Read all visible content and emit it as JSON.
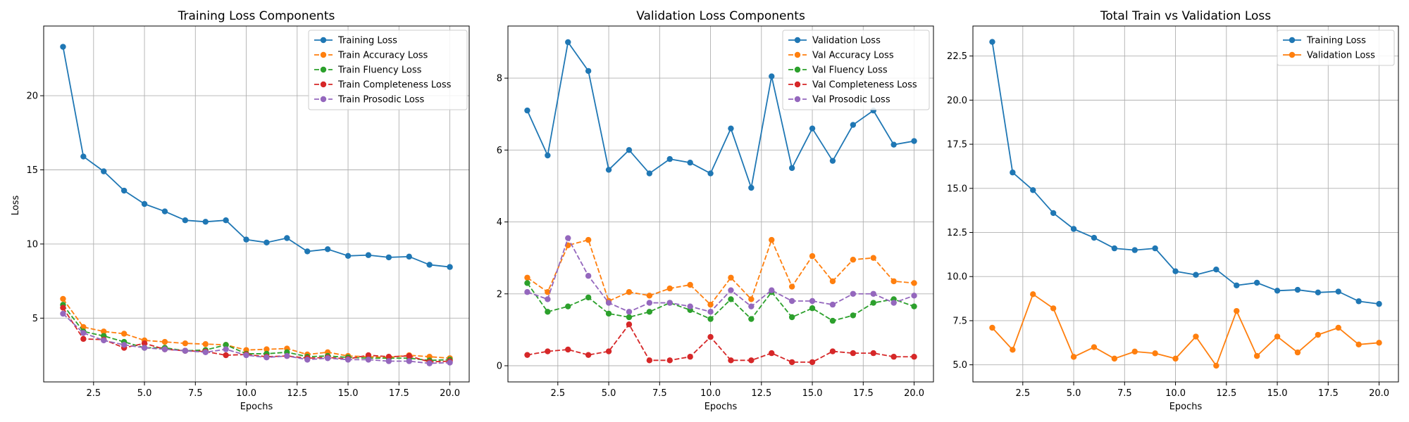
{
  "colors": [
    "#1f77b4",
    "#ff7f0e",
    "#2ca02c",
    "#d62728",
    "#9467bd"
  ],
  "chart_data": [
    {
      "type": "line",
      "title": "Training Loss Components",
      "xlabel": "Epochs",
      "ylabel": "Loss",
      "xlim": [
        0.05,
        20.95
      ],
      "ylim": [
        0.7,
        24.7
      ],
      "xticks": [
        2.5,
        5.0,
        7.5,
        10.0,
        12.5,
        15.0,
        17.5,
        20.0
      ],
      "yticks": [
        5,
        10,
        15,
        20
      ],
      "grid": true,
      "legend": "top-right",
      "x": [
        1,
        2,
        3,
        4,
        5,
        6,
        7,
        8,
        9,
        10,
        11,
        12,
        13,
        14,
        15,
        16,
        17,
        18,
        19,
        20
      ],
      "series": [
        {
          "name": "Training Loss",
          "style": "solid",
          "values": [
            23.3,
            15.9,
            14.9,
            13.6,
            12.7,
            12.2,
            11.6,
            11.5,
            11.6,
            10.3,
            10.1,
            10.4,
            9.5,
            9.65,
            9.2,
            9.25,
            9.1,
            9.15,
            8.6,
            8.45
          ]
        },
        {
          "name": "Train Accuracy Loss",
          "style": "dashed",
          "values": [
            6.3,
            4.4,
            4.1,
            3.95,
            3.5,
            3.4,
            3.3,
            3.25,
            3.2,
            2.85,
            2.9,
            2.95,
            2.55,
            2.7,
            2.45,
            2.4,
            2.35,
            2.5,
            2.4,
            2.3
          ]
        },
        {
          "name": "Train Fluency Loss",
          "style": "dashed",
          "values": [
            5.9,
            4.1,
            3.8,
            3.4,
            3.0,
            3.0,
            2.8,
            2.85,
            3.2,
            2.6,
            2.6,
            2.7,
            2.4,
            2.45,
            2.35,
            2.3,
            2.3,
            2.3,
            2.15,
            2.2
          ]
        },
        {
          "name": "Train Completeness Loss",
          "style": "dashed",
          "values": [
            5.7,
            3.6,
            3.55,
            3.0,
            3.3,
            2.9,
            2.8,
            2.75,
            2.5,
            2.55,
            2.4,
            2.45,
            2.3,
            2.35,
            2.25,
            2.5,
            2.4,
            2.45,
            2.05,
            2.1
          ]
        },
        {
          "name": "Train Prosodic Loss",
          "style": "dashed",
          "values": [
            5.3,
            4.0,
            3.5,
            3.2,
            3.0,
            2.9,
            2.8,
            2.7,
            2.9,
            2.5,
            2.35,
            2.45,
            2.2,
            2.3,
            2.2,
            2.2,
            2.1,
            2.1,
            1.95,
            2.0
          ]
        }
      ]
    },
    {
      "type": "line",
      "title": "Validation Loss Components",
      "xlabel": "Epochs",
      "ylabel": "",
      "xlim": [
        0.05,
        20.95
      ],
      "ylim": [
        -0.45,
        9.45
      ],
      "xticks": [
        2.5,
        5.0,
        7.5,
        10.0,
        12.5,
        15.0,
        17.5,
        20.0
      ],
      "yticks": [
        0,
        2,
        4,
        6,
        8
      ],
      "grid": true,
      "legend": "top-right",
      "x": [
        1,
        2,
        3,
        4,
        5,
        6,
        7,
        8,
        9,
        10,
        11,
        12,
        13,
        14,
        15,
        16,
        17,
        18,
        19,
        20
      ],
      "series": [
        {
          "name": "Validation Loss",
          "style": "solid",
          "values": [
            7.1,
            5.85,
            9.0,
            8.2,
            5.45,
            6.0,
            5.35,
            5.75,
            5.65,
            5.35,
            6.6,
            4.95,
            8.05,
            5.5,
            6.6,
            5.7,
            6.7,
            7.1,
            6.15,
            6.25
          ]
        },
        {
          "name": "Val Accuracy Loss",
          "style": "dashed",
          "values": [
            2.45,
            2.05,
            3.35,
            3.5,
            1.8,
            2.05,
            1.95,
            2.15,
            2.25,
            1.7,
            2.45,
            1.85,
            3.5,
            2.2,
            3.05,
            2.35,
            2.95,
            3.0,
            2.35,
            2.3
          ]
        },
        {
          "name": "Val Fluency Loss",
          "style": "dashed",
          "values": [
            2.3,
            1.5,
            1.65,
            1.9,
            1.45,
            1.35,
            1.5,
            1.75,
            1.55,
            1.3,
            1.85,
            1.3,
            2.05,
            1.35,
            1.6,
            1.25,
            1.4,
            1.75,
            1.85,
            1.65
          ]
        },
        {
          "name": "Val Completeness Loss",
          "style": "dashed",
          "values": [
            0.3,
            0.4,
            0.45,
            0.3,
            0.4,
            1.15,
            0.15,
            0.15,
            0.25,
            0.8,
            0.15,
            0.15,
            0.35,
            0.1,
            0.1,
            0.4,
            0.35,
            0.35,
            0.25,
            0.25
          ]
        },
        {
          "name": "Val Prosodic Loss",
          "style": "dashed",
          "values": [
            2.05,
            1.85,
            3.55,
            2.5,
            1.75,
            1.5,
            1.75,
            1.75,
            1.65,
            1.5,
            2.1,
            1.65,
            2.1,
            1.8,
            1.8,
            1.7,
            2.0,
            2.0,
            1.75,
            1.95
          ]
        }
      ]
    },
    {
      "type": "line",
      "title": "Total Train vs Validation Loss",
      "xlabel": "Epochs",
      "ylabel": "",
      "xlim": [
        0.05,
        20.95
      ],
      "ylim": [
        4.03,
        24.2
      ],
      "xticks": [
        2.5,
        5.0,
        7.5,
        10.0,
        12.5,
        15.0,
        17.5,
        20.0
      ],
      "yticks": [
        5.0,
        7.5,
        10.0,
        12.5,
        15.0,
        17.5,
        20.0,
        22.5
      ],
      "grid": true,
      "legend": "top-right",
      "x": [
        1,
        2,
        3,
        4,
        5,
        6,
        7,
        8,
        9,
        10,
        11,
        12,
        13,
        14,
        15,
        16,
        17,
        18,
        19,
        20
      ],
      "series": [
        {
          "name": "Training Loss",
          "style": "solid",
          "values": [
            23.3,
            15.9,
            14.9,
            13.6,
            12.7,
            12.2,
            11.6,
            11.5,
            11.6,
            10.3,
            10.1,
            10.4,
            9.5,
            9.65,
            9.2,
            9.25,
            9.1,
            9.15,
            8.6,
            8.45
          ]
        },
        {
          "name": "Validation Loss",
          "style": "solid",
          "values": [
            7.1,
            5.85,
            9.0,
            8.2,
            5.45,
            6.0,
            5.35,
            5.75,
            5.65,
            5.35,
            6.6,
            4.95,
            8.05,
            5.5,
            6.6,
            5.7,
            6.7,
            7.1,
            6.15,
            6.25
          ]
        }
      ]
    }
  ]
}
